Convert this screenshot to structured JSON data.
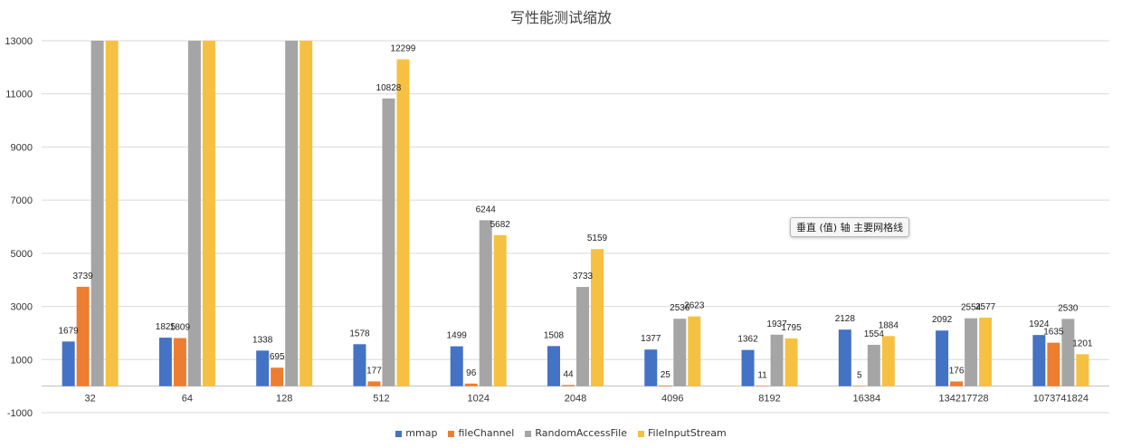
{
  "chart_data": {
    "type": "bar",
    "title": "写性能测试缩放",
    "xlabel": "",
    "ylabel": "",
    "ylim": [
      -1000,
      13000
    ],
    "yticks": [
      -1000,
      1000,
      3000,
      5000,
      7000,
      9000,
      11000,
      13000
    ],
    "grid": true,
    "legend_position": "bottom",
    "categories": [
      "32",
      "64",
      "128",
      "512",
      "1024",
      "2048",
      "4096",
      "8192",
      "16384",
      "134217728",
      "1073741824"
    ],
    "series": [
      {
        "name": "mmap",
        "color": "#4472c4",
        "values": [
          1679,
          1825,
          1338,
          1578,
          1499,
          1508,
          1377,
          1362,
          2128,
          2092,
          1924
        ],
        "labels": [
          true,
          true,
          true,
          true,
          true,
          true,
          true,
          true,
          true,
          true,
          true
        ]
      },
      {
        "name": "fileChannel",
        "color": "#ed7d31",
        "values": [
          3739,
          1809,
          695,
          177,
          96,
          44,
          25,
          11,
          5,
          176,
          1635
        ],
        "labels": [
          true,
          true,
          true,
          true,
          true,
          true,
          true,
          true,
          true,
          true,
          true
        ]
      },
      {
        "name": "RandomAccessFile",
        "color": "#a5a5a5",
        "values": [
          13000,
          13000,
          13000,
          10828,
          6244,
          3733,
          2536,
          1937,
          1554,
          2554,
          2530
        ],
        "labels": [
          false,
          false,
          false,
          true,
          true,
          true,
          true,
          true,
          true,
          true,
          true
        ]
      },
      {
        "name": "FileInputStream",
        "color": "#f6c142",
        "values": [
          13000,
          13000,
          13000,
          12299,
          5682,
          5159,
          2623,
          1795,
          1884,
          2577,
          1201
        ],
        "labels": [
          false,
          false,
          false,
          true,
          true,
          true,
          true,
          true,
          true,
          true,
          true
        ]
      }
    ],
    "tooltip": "垂直 (值) 轴 主要网格线"
  }
}
